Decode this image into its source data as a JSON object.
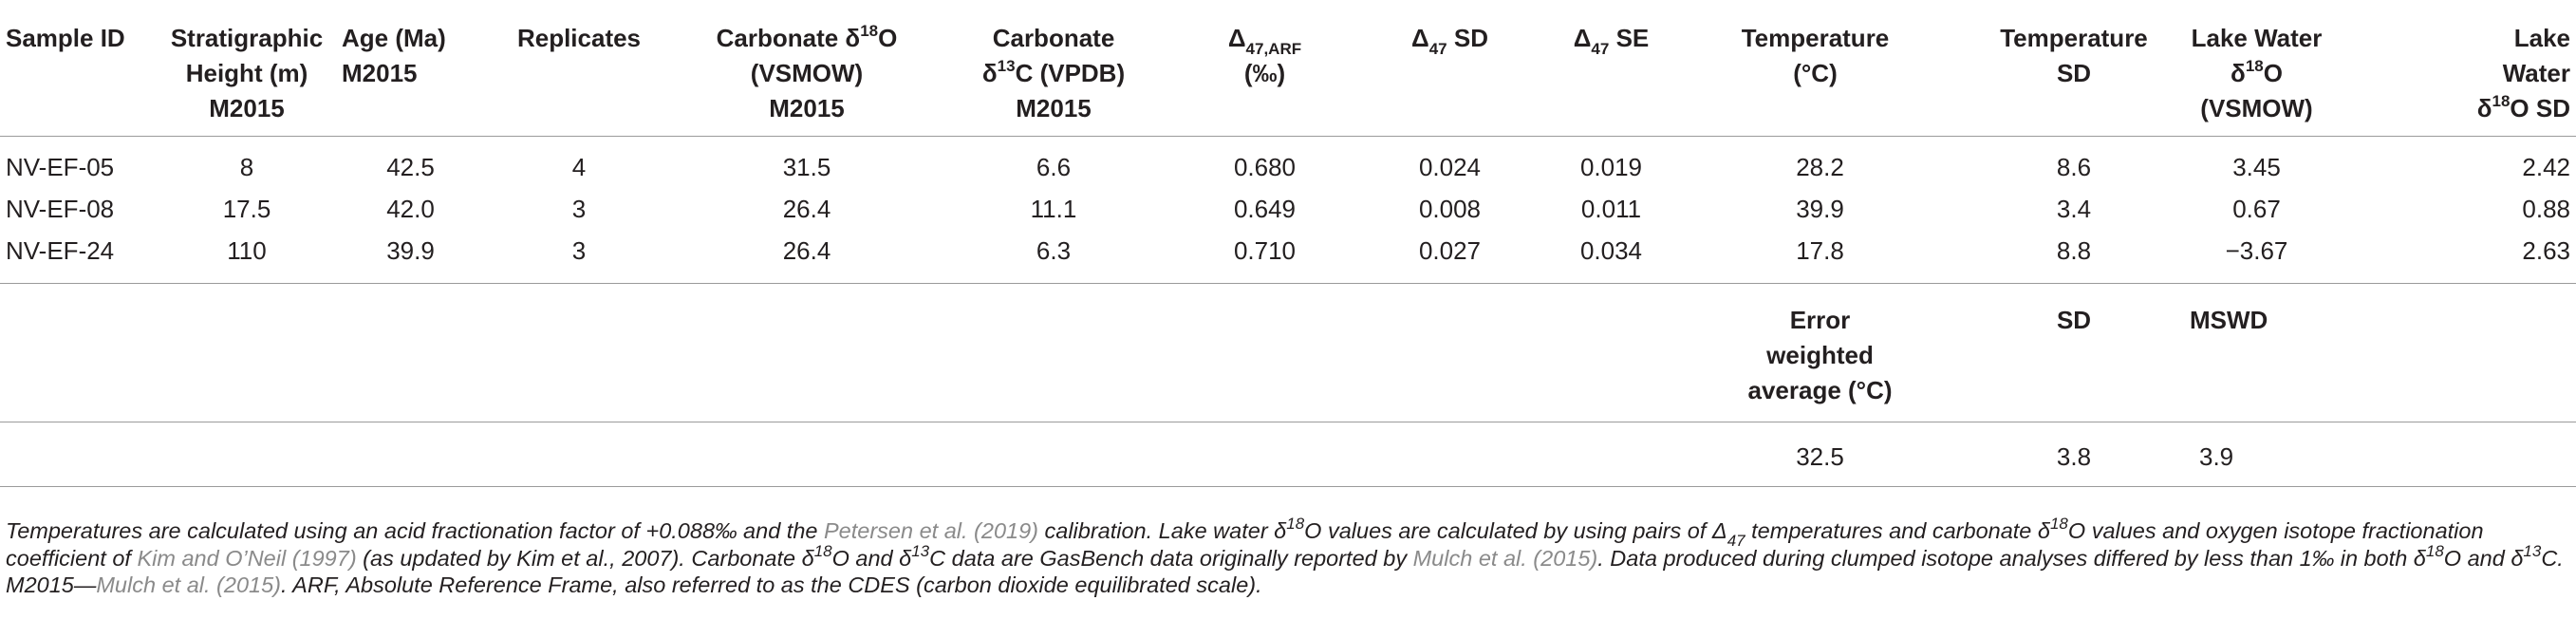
{
  "table": {
    "headers": [
      {
        "id": "sample_id",
        "parts": [
          "Sample ID"
        ]
      },
      {
        "id": "strat_height",
        "parts": [
          "Stratigraphic",
          "Height (m)",
          "M2015"
        ]
      },
      {
        "id": "age",
        "parts": [
          "Age (Ma)",
          "M2015"
        ]
      },
      {
        "id": "replicates",
        "parts": [
          "Replicates"
        ]
      },
      {
        "id": "carb_d18o",
        "line1_pre": "Carbonate δ",
        "line1_sup": "18",
        "line1_post": "O",
        "line2": "(VSMOW)",
        "line3": "M2015"
      },
      {
        "id": "carb_d13c",
        "line1": "Carbonate",
        "line2_pre": "δ",
        "line2_sup": "13",
        "line2_post": "C (VPDB)",
        "line3": "M2015"
      },
      {
        "id": "d47_arf",
        "pre": "Δ",
        "sub": "47,ARF",
        "line2": "(‰)"
      },
      {
        "id": "d47_sd",
        "pre": "Δ",
        "sub": "47",
        "post": " SD"
      },
      {
        "id": "d47_se",
        "pre": "Δ",
        "sub": "47",
        "post": " SE"
      },
      {
        "id": "temperature",
        "parts": [
          "Temperature",
          "(°C)"
        ]
      },
      {
        "id": "temperature_sd",
        "parts": [
          "Temperature",
          "SD"
        ]
      },
      {
        "id": "lake_water_d18o",
        "line1": "Lake Water",
        "line2_pre": "δ",
        "line2_sup": "18",
        "line2_post": "O",
        "line3": "(VSMOW)"
      },
      {
        "id": "lake_water_d18o_sd",
        "line1": "Lake",
        "line2": "Water",
        "line3_pre": "δ",
        "line3_sup": "18",
        "line3_post": "O SD"
      }
    ],
    "rows": [
      [
        "NV-EF-05",
        "8",
        "42.5",
        "4",
        "31.5",
        "6.6",
        "0.680",
        "0.024",
        "0.019",
        "28.2",
        "8.6",
        "3.45",
        "2.42"
      ],
      [
        "NV-EF-08",
        "17.5",
        "42.0",
        "3",
        "26.4",
        "11.1",
        "0.649",
        "0.008",
        "0.011",
        "39.9",
        "3.4",
        "0.67",
        "0.88"
      ],
      [
        "NV-EF-24",
        "110",
        "39.9",
        "3",
        "26.4",
        "6.3",
        "0.710",
        "0.027",
        "0.034",
        "17.8",
        "8.8",
        "−3.67",
        "2.63"
      ]
    ],
    "summary": {
      "headers": {
        "error_weighted": [
          "Error",
          "weighted",
          "average (°C)"
        ],
        "sd": "SD",
        "mswd": "MSWD"
      },
      "values": {
        "error_weighted": "32.5",
        "sd": "3.8",
        "mswd": "3.9"
      }
    }
  },
  "footnote": {
    "s1": "Temperatures are calculated using an acid fractionation factor of +0.088‰ and the ",
    "ref_petersen": "Petersen et al. (2019)",
    "s2": " calibration. Lake water δ",
    "s2_sup": "18",
    "s3": "O values are calculated by using pairs of Δ",
    "s3_sub": "47",
    "s4": " temperatures and carbonate δ",
    "s4_sup": "18",
    "s5": "O values and oxygen isotope fractionation coefficient of ",
    "ref_kim": "Kim and O’Neil (1997)",
    "s6": " (as updated by Kim et al., 2007). Carbonate δ",
    "s6_sup": "18",
    "s7": "O and δ",
    "s7_sup": "13",
    "s8": "C data are GasBench data originally reported by ",
    "ref_mulch1": "Mulch et al. (2015)",
    "s9": ". Data produced during clumped isotope analyses differed by less than 1‰ in both δ",
    "s9_sup": "18",
    "s10": "O and δ",
    "s10_sup": "13",
    "s11": "C. M2015—",
    "ref_mulch2": "Mulch et al. (2015)",
    "s12": ". ARF, Absolute Reference Frame, also referred to as the CDES (carbon dioxide equilibrated scale)."
  }
}
